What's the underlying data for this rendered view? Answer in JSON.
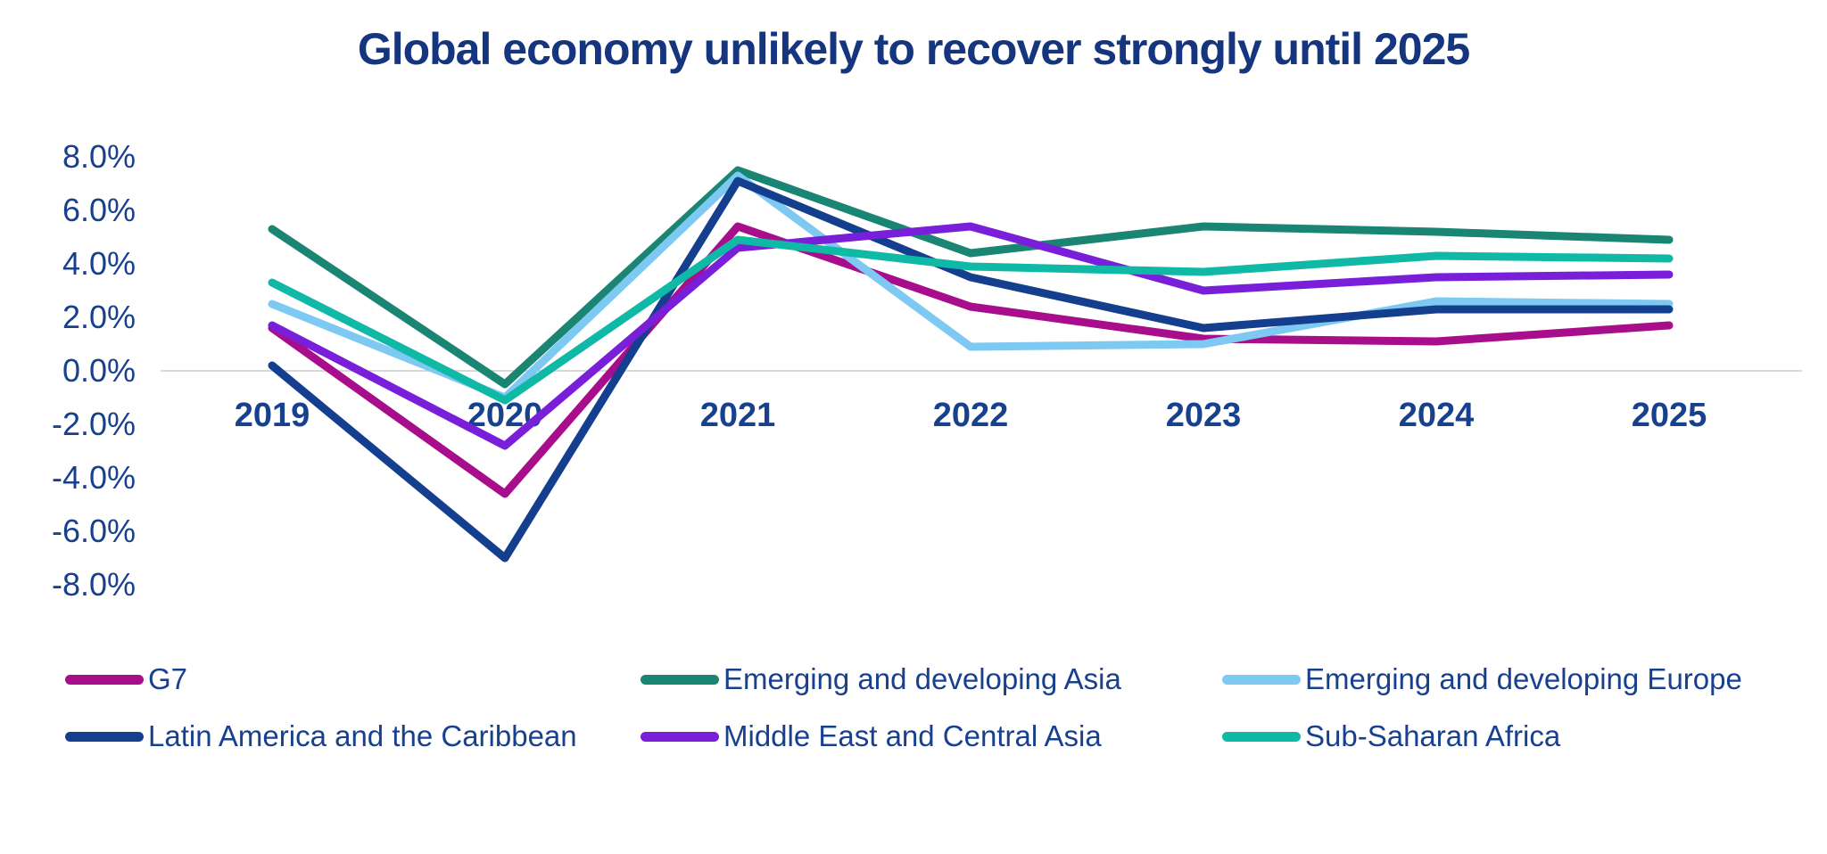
{
  "title": "Global economy unlikely to recover strongly until 2025",
  "chart_data": {
    "type": "line",
    "title": "Global economy unlikely to recover strongly until 2025",
    "x": [
      "2019",
      "2020",
      "2021",
      "2022",
      "2023",
      "2024",
      "2025"
    ],
    "series": [
      {
        "name": "G7",
        "color": "#a80d8c",
        "values": [
          1.6,
          -4.6,
          5.4,
          2.4,
          1.2,
          1.1,
          1.7
        ]
      },
      {
        "name": "Emerging and developing Asia",
        "color": "#1a8573",
        "values": [
          5.3,
          -0.5,
          7.5,
          4.4,
          5.4,
          5.2,
          4.9
        ]
      },
      {
        "name": "Emerging and developing Europe",
        "color": "#7ec9f2",
        "values": [
          2.5,
          -1.0,
          7.3,
          0.9,
          1.0,
          2.6,
          2.5
        ]
      },
      {
        "name": "Latin America and the Caribbean",
        "color": "#133f8e",
        "values": [
          0.2,
          -7.0,
          7.1,
          3.5,
          1.6,
          2.3,
          2.3
        ]
      },
      {
        "name": "Middle East and Central Asia",
        "color": "#7a1fd9",
        "values": [
          1.7,
          -2.8,
          4.6,
          5.4,
          3.0,
          3.5,
          3.6
        ]
      },
      {
        "name": "Sub-Saharan Africa",
        "color": "#10b9a5",
        "values": [
          3.3,
          -1.1,
          4.9,
          3.9,
          3.7,
          4.3,
          4.2
        ]
      }
    ],
    "xlabel": "",
    "ylabel": "",
    "ylim": [
      -8,
      8
    ],
    "ytick_values": [
      8,
      6,
      4,
      2,
      0,
      -2,
      -4,
      -6,
      -8
    ],
    "ytick_labels": [
      "8.0%",
      "6.0%",
      "4.0%",
      "2.0%",
      "0.0%",
      "-2.0%",
      "-4.0%",
      "-6.0%",
      "-8.0%"
    ],
    "grid": "zero-line-only",
    "gridline_color": "#d8d8d8",
    "legend_position": "bottom",
    "text_color": "#17408f"
  }
}
